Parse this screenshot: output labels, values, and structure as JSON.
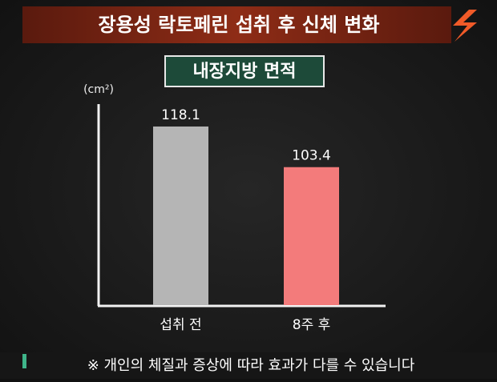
{
  "chart_data": {
    "type": "bar",
    "title": "장용성 락토페린 섭취 후 신체 변화",
    "subtitle": "내장지방 면적",
    "y_label": "(cm²)",
    "categories": [
      "섭취 전",
      "8주 후"
    ],
    "series": [
      {
        "name": "내장지방 면적",
        "values": [
          118.1,
          103.4
        ]
      }
    ],
    "colors": [
      "#b5b5b5",
      "#f37b7b"
    ],
    "ylim": [
      53.5,
      126.2
    ],
    "note": "※ 개인의 체질과 증상에 따라 효과가 다를 수 있습니다"
  }
}
